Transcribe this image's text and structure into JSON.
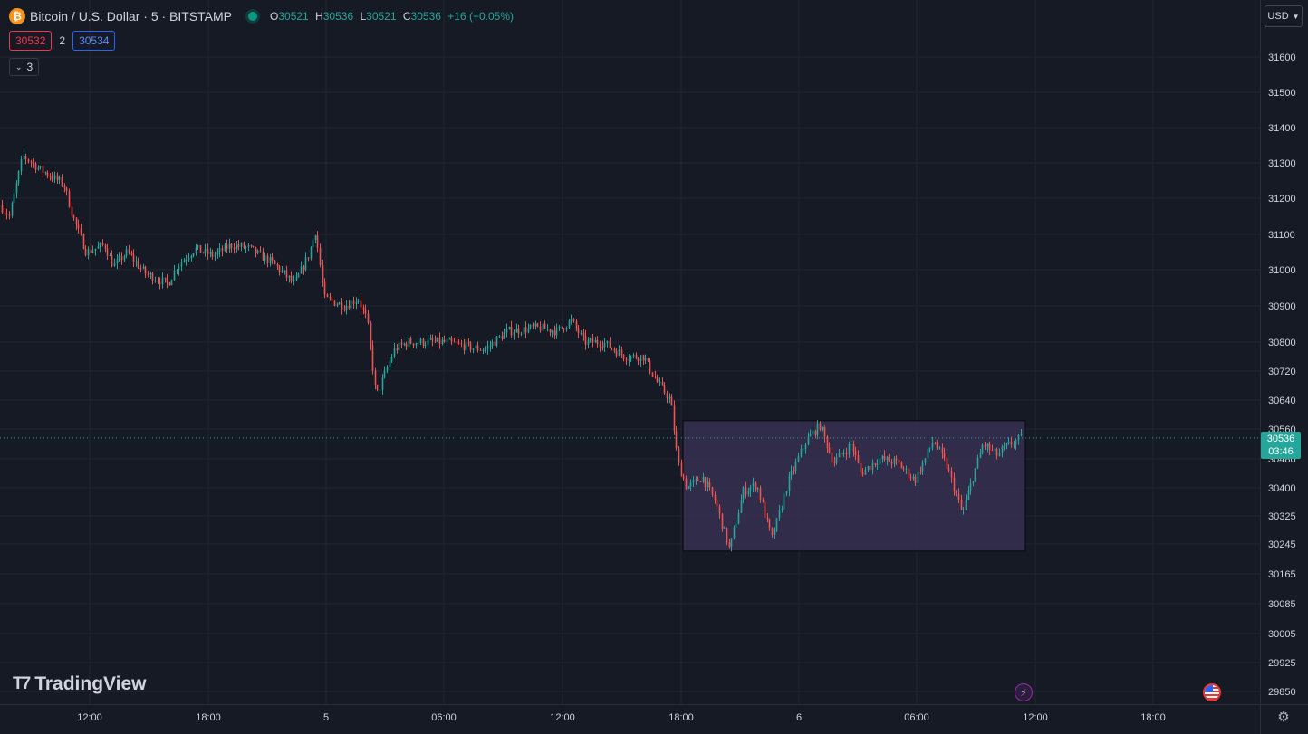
{
  "header": {
    "symbol": "Bitcoin / U.S. Dollar · 5 · BITSTAMP",
    "coin_icon": "₿",
    "ohlc": {
      "o_label": "O",
      "o": "30521",
      "h_label": "H",
      "h": "30536",
      "l_label": "L",
      "l": "30521",
      "c_label": "C",
      "c": "30536",
      "change": "+16 (+0.05%)"
    }
  },
  "quote": {
    "bid": "30532",
    "spread": "2",
    "ask": "30534"
  },
  "indicators_toggle": {
    "count": "3"
  },
  "currency": {
    "label": "USD"
  },
  "brand": {
    "name": "TradingView"
  },
  "current_price": {
    "price": "30536",
    "countdown": "03:46",
    "value": 30536
  },
  "colors": {
    "background": "#161a25",
    "grid": "#232632",
    "up": "#26a69a",
    "down": "#ef5350",
    "box_fill": "#3b3355",
    "axis_text": "#d1d4dc"
  },
  "chart_data": {
    "type": "candlestick",
    "title": "",
    "x_tick_labels": [
      "12:00",
      "18:00",
      "5",
      "06:00",
      "12:00",
      "18:00",
      "6",
      "06:00",
      "12:00",
      "18:00"
    ],
    "y_tick_labels": [
      31600,
      31500,
      31400,
      31300,
      31200,
      31100,
      31000,
      30900,
      30800,
      30720,
      30640,
      30560,
      30480,
      30400,
      30325,
      30245,
      30165,
      30085,
      30005,
      29925,
      29850
    ],
    "anchors": [
      {
        "t": 0,
        "p": 31180
      },
      {
        "t": 10,
        "p": 31150
      },
      {
        "t": 25,
        "p": 31320
      },
      {
        "t": 45,
        "p": 31280
      },
      {
        "t": 70,
        "p": 31240
      },
      {
        "t": 80,
        "p": 31150
      },
      {
        "t": 95,
        "p": 31050
      },
      {
        "t": 115,
        "p": 31070
      },
      {
        "t": 125,
        "p": 31010
      },
      {
        "t": 140,
        "p": 31050
      },
      {
        "t": 160,
        "p": 30990
      },
      {
        "t": 185,
        "p": 30960
      },
      {
        "t": 195,
        "p": 31010
      },
      {
        "t": 215,
        "p": 31060
      },
      {
        "t": 235,
        "p": 31040
      },
      {
        "t": 255,
        "p": 31070
      },
      {
        "t": 275,
        "p": 31060
      },
      {
        "t": 300,
        "p": 31020
      },
      {
        "t": 325,
        "p": 30960
      },
      {
        "t": 340,
        "p": 31040
      },
      {
        "t": 348,
        "p": 31110
      },
      {
        "t": 358,
        "p": 30920
      },
      {
        "t": 380,
        "p": 30900
      },
      {
        "t": 395,
        "p": 30920
      },
      {
        "t": 405,
        "p": 30860
      },
      {
        "t": 415,
        "p": 30650
      },
      {
        "t": 435,
        "p": 30780
      },
      {
        "t": 450,
        "p": 30800
      },
      {
        "t": 490,
        "p": 30800
      },
      {
        "t": 510,
        "p": 30790
      },
      {
        "t": 535,
        "p": 30780
      },
      {
        "t": 560,
        "p": 30830
      },
      {
        "t": 595,
        "p": 30840
      },
      {
        "t": 615,
        "p": 30830
      },
      {
        "t": 630,
        "p": 30860
      },
      {
        "t": 645,
        "p": 30800
      },
      {
        "t": 665,
        "p": 30800
      },
      {
        "t": 690,
        "p": 30760
      },
      {
        "t": 710,
        "p": 30760
      },
      {
        "t": 725,
        "p": 30690
      },
      {
        "t": 740,
        "p": 30640
      },
      {
        "t": 748,
        "p": 30470
      },
      {
        "t": 758,
        "p": 30400
      },
      {
        "t": 775,
        "p": 30430
      },
      {
        "t": 790,
        "p": 30360
      },
      {
        "t": 805,
        "p": 30230
      },
      {
        "t": 820,
        "p": 30390
      },
      {
        "t": 835,
        "p": 30410
      },
      {
        "t": 852,
        "p": 30260
      },
      {
        "t": 870,
        "p": 30420
      },
      {
        "t": 890,
        "p": 30530
      },
      {
        "t": 905,
        "p": 30570
      },
      {
        "t": 920,
        "p": 30470
      },
      {
        "t": 940,
        "p": 30520
      },
      {
        "t": 950,
        "p": 30440
      },
      {
        "t": 970,
        "p": 30480
      },
      {
        "t": 990,
        "p": 30470
      },
      {
        "t": 1010,
        "p": 30420
      },
      {
        "t": 1030,
        "p": 30530
      },
      {
        "t": 1045,
        "p": 30460
      },
      {
        "t": 1062,
        "p": 30330
      },
      {
        "t": 1075,
        "p": 30440
      },
      {
        "t": 1085,
        "p": 30520
      },
      {
        "t": 1100,
        "p": 30490
      },
      {
        "t": 1115,
        "p": 30520
      },
      {
        "t": 1128,
        "p": 30536
      }
    ],
    "highlight_box": {
      "t_start": 754,
      "t_end": 1132,
      "p_high": 30583,
      "p_low": 30226
    },
    "last_price": 30536,
    "grid": true
  }
}
